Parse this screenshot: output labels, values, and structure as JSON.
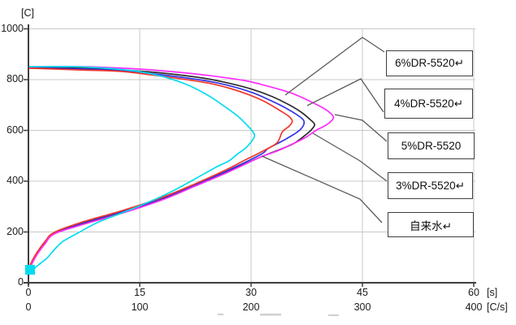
{
  "y_axis": {
    "unit": "[C]",
    "ticks": [
      "1000",
      "800",
      "600",
      "400",
      "200",
      "0"
    ]
  },
  "x_axis_time": {
    "unit": "[s]",
    "ticks": [
      "0",
      "15",
      "30",
      "45",
      "60"
    ]
  },
  "x_axis_rate": {
    "unit": "[C/s]",
    "ticks": [
      "0",
      "100",
      "200",
      "300",
      "400"
    ]
  },
  "callouts": [
    {
      "id": "callout-6dr5520",
      "label": "6%DR-5520↵"
    },
    {
      "id": "callout-4dr5520",
      "label": "4%DR-5520↵"
    },
    {
      "id": "callout-5dr5520",
      "label": "5%DR-5520"
    },
    {
      "id": "callout-3dr5520",
      "label": "3%DR-5520↵"
    },
    {
      "id": "callout-tap-water",
      "label": "自来水↵"
    }
  ],
  "colors": {
    "magenta_curve": "#ff2cff",
    "black_curve": "#2e2e2e",
    "blue_curve": "#3333e6",
    "red_curve": "#f0372b",
    "cyan_curve": "#00dcef",
    "gridline": "#c9c9c9",
    "axis": "#3f3f3f",
    "leader": "#5a5a5a"
  },
  "chart_data": {
    "type": "line",
    "title": "",
    "description": "Cooling curves: temperature [C] versus cooling rate [C/s] (dual x-axis: time 0-60 s, cooling rate 0-400 C/s) for DR-5520 quenchant solutions and tap water",
    "ylabel": "[C]",
    "ylim": [
      0,
      1000
    ],
    "xlabel_primary": "[s]",
    "xlim_primary": [
      0,
      60
    ],
    "xlabel_secondary": "[C/s]",
    "xlim_secondary": [
      0,
      400
    ],
    "grid": true,
    "legend_position": "right-callout-boxes",
    "series": [
      {
        "name": "6%DR-5520",
        "id": "curve-6dr5520",
        "color": "#2e2e2e",
        "points": [
          [
            1,
            848
          ],
          [
            47,
            845
          ],
          [
            84,
            838
          ],
          [
            120,
            826
          ],
          [
            157,
            806
          ],
          [
            179,
            787
          ],
          [
            201,
            762
          ],
          [
            219,
            733
          ],
          [
            234,
            701
          ],
          [
            245,
            672
          ],
          [
            253,
            643
          ],
          [
            257,
            624
          ],
          [
            255,
            607
          ],
          [
            250,
            586
          ],
          [
            239,
            550
          ],
          [
            226,
            525
          ],
          [
            209,
            496
          ],
          [
            179,
            438
          ],
          [
            150,
            384
          ],
          [
            120,
            330
          ],
          [
            85,
            278
          ],
          [
            47,
            230
          ],
          [
            23,
            192
          ],
          [
            15,
            157
          ],
          [
            7,
            109
          ],
          [
            2,
            67
          ],
          [
            0,
            42
          ]
        ]
      },
      {
        "name": "4%DR-5520",
        "id": "curve-4dr5520",
        "color": "#3333e6",
        "points": [
          [
            1,
            845
          ],
          [
            47,
            842
          ],
          [
            84,
            835
          ],
          [
            120,
            819
          ],
          [
            157,
            797
          ],
          [
            179,
            778
          ],
          [
            201,
            749
          ],
          [
            215,
            723
          ],
          [
            230,
            691
          ],
          [
            241,
            662
          ],
          [
            247,
            641
          ],
          [
            247,
            620
          ],
          [
            242,
            595
          ],
          [
            230,
            563
          ],
          [
            215,
            528
          ],
          [
            209,
            506
          ],
          [
            179,
            442
          ],
          [
            150,
            387
          ],
          [
            120,
            333
          ],
          [
            85,
            282
          ],
          [
            47,
            234
          ],
          [
            23,
            195
          ],
          [
            15,
            160
          ],
          [
            7,
            112
          ],
          [
            2,
            70
          ],
          [
            0,
            45
          ]
        ]
      },
      {
        "name": "5%DR-5520",
        "id": "curve-5dr5520",
        "color": "#ff2cff",
        "points": [
          [
            1,
            851
          ],
          [
            47,
            851
          ],
          [
            84,
            845
          ],
          [
            120,
            835
          ],
          [
            157,
            819
          ],
          [
            193,
            797
          ],
          [
            215,
            774
          ],
          [
            237,
            746
          ],
          [
            255,
            710
          ],
          [
            266,
            685
          ],
          [
            272,
            665
          ],
          [
            274,
            650
          ],
          [
            271,
            633
          ],
          [
            265,
            615
          ],
          [
            259,
            602
          ],
          [
            248,
            570
          ],
          [
            236,
            544
          ],
          [
            223,
            518
          ],
          [
            209,
            496
          ],
          [
            179,
            435
          ],
          [
            150,
            381
          ],
          [
            120,
            326
          ],
          [
            85,
            275
          ],
          [
            47,
            227
          ],
          [
            23,
            192
          ],
          [
            15,
            154
          ],
          [
            7,
            106
          ],
          [
            2,
            64
          ],
          [
            0,
            38
          ]
        ]
      },
      {
        "name": "3%DR-5520",
        "id": "curve-3dr5520",
        "color": "#f0372b",
        "points": [
          [
            1,
            845
          ],
          [
            47,
            838
          ],
          [
            84,
            832
          ],
          [
            120,
            813
          ],
          [
            157,
            790
          ],
          [
            179,
            768
          ],
          [
            197,
            742
          ],
          [
            212,
            714
          ],
          [
            226,
            678
          ],
          [
            234,
            655
          ],
          [
            237,
            636
          ],
          [
            234,
            616
          ],
          [
            228,
            594
          ],
          [
            223,
            550
          ],
          [
            209,
            515
          ],
          [
            193,
            480
          ],
          [
            179,
            448
          ],
          [
            150,
            390
          ],
          [
            120,
            336
          ],
          [
            85,
            285
          ],
          [
            47,
            237
          ],
          [
            23,
            198
          ],
          [
            15,
            163
          ],
          [
            7,
            115
          ],
          [
            2,
            74
          ],
          [
            0,
            48
          ]
        ]
      },
      {
        "name": "自来水",
        "id": "curve-tap-water",
        "color": "#00dcef",
        "points": [
          [
            1,
            851
          ],
          [
            40,
            851
          ],
          [
            69,
            845
          ],
          [
            99,
            832
          ],
          [
            120,
            813
          ],
          [
            142,
            781
          ],
          [
            161,
            739
          ],
          [
            175,
            698
          ],
          [
            188,
            656
          ],
          [
            197,
            618
          ],
          [
            202,
            592
          ],
          [
            203,
            576
          ],
          [
            200,
            554
          ],
          [
            195,
            530
          ],
          [
            188,
            508
          ],
          [
            180,
            480
          ],
          [
            168,
            454
          ],
          [
            150,
            410
          ],
          [
            128,
            358
          ],
          [
            106,
            314
          ],
          [
            84,
            275
          ],
          [
            62,
            237
          ],
          [
            44,
            195
          ],
          [
            31,
            163
          ],
          [
            24,
            134
          ],
          [
            17,
            99
          ],
          [
            9,
            70
          ],
          [
            4,
            51
          ],
          [
            1,
            38
          ]
        ]
      }
    ]
  }
}
